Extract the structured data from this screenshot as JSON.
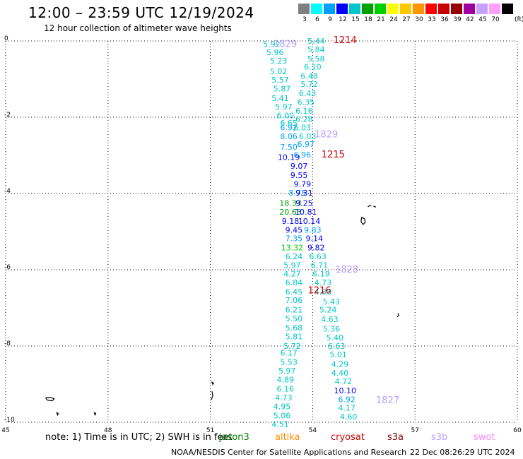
{
  "title": "12:00 – 23:59 UTC 12/19/2024",
  "subtitle": "12 hour collection of altimeter wave heights",
  "colorbar": {
    "unit": "(ft)",
    "entries": [
      {
        "label": "3",
        "color": "#7f7f7f"
      },
      {
        "label": "6",
        "color": "#00ffff"
      },
      {
        "label": "9",
        "color": "#00a0ff"
      },
      {
        "label": "12",
        "color": "#0000ff"
      },
      {
        "label": "15",
        "color": "#00c8c8"
      },
      {
        "label": "18",
        "color": "#00a000"
      },
      {
        "label": "21",
        "color": "#00d000"
      },
      {
        "label": "24",
        "color": "#ffff00"
      },
      {
        "label": "27",
        "color": "#ffc800"
      },
      {
        "label": "30",
        "color": "#ff9600"
      },
      {
        "label": "33",
        "color": "#ff0000"
      },
      {
        "label": "36",
        "color": "#c80000"
      },
      {
        "label": "39",
        "color": "#960000"
      },
      {
        "label": "42",
        "color": "#a000a0"
      },
      {
        "label": "45",
        "color": "#c8a0ff"
      },
      {
        "label": "70",
        "color": "#ffa0ff"
      },
      {
        "label": "",
        "color": "#000000"
      }
    ]
  },
  "axes": {
    "x_ticks": [
      "45",
      "48",
      "51",
      "54",
      "57",
      "60"
    ],
    "y_ticks": [
      "0",
      "-2",
      "-4",
      "-6",
      "-8",
      "-10"
    ],
    "x_range": [
      45,
      60
    ],
    "y_range": [
      -10,
      0
    ],
    "grid": true
  },
  "track": [
    {
      "v": "5.92",
      "lon": 52.8,
      "lat": -0.08,
      "c": "#00c8c8"
    },
    {
      "v": "5.44",
      "lon": 54.1,
      "lat": 0.0,
      "c": "#00c8c8"
    },
    {
      "v": "5.84",
      "lon": 54.1,
      "lat": -0.22,
      "c": "#00c8c8"
    },
    {
      "v": "5.96",
      "lon": 52.9,
      "lat": -0.3,
      "c": "#00c8c8"
    },
    {
      "v": "5.58",
      "lon": 54.1,
      "lat": -0.46,
      "c": "#00c8c8"
    },
    {
      "v": "5.23",
      "lon": 53.0,
      "lat": -0.52,
      "c": "#00c8c8"
    },
    {
      "v": "6.10",
      "lon": 54.0,
      "lat": -0.68,
      "c": "#00c8c8"
    },
    {
      "v": "5.02",
      "lon": 53.0,
      "lat": -0.8,
      "c": "#00c8c8"
    },
    {
      "v": "6.48",
      "lon": 53.9,
      "lat": -0.92,
      "c": "#00c8c8"
    },
    {
      "v": "5.57",
      "lon": 53.05,
      "lat": -1.02,
      "c": "#00c8c8"
    },
    {
      "v": "5.72",
      "lon": 53.9,
      "lat": -1.13,
      "c": "#00c8c8"
    },
    {
      "v": "5.87",
      "lon": 53.1,
      "lat": -1.25,
      "c": "#00c8c8"
    },
    {
      "v": "6.43",
      "lon": 53.85,
      "lat": -1.37,
      "c": "#00c8c8"
    },
    {
      "v": "5.41",
      "lon": 53.05,
      "lat": -1.5,
      "c": "#00c8c8"
    },
    {
      "v": "6.35",
      "lon": 53.8,
      "lat": -1.6,
      "c": "#00c8c8"
    },
    {
      "v": "5.97",
      "lon": 53.15,
      "lat": -1.72,
      "c": "#00c8c8"
    },
    {
      "v": "6.16",
      "lon": 53.75,
      "lat": -1.83,
      "c": "#00c8c8"
    },
    {
      "v": "6.00",
      "lon": 53.2,
      "lat": -1.95,
      "c": "#00c8c8"
    },
    {
      "v": "6.28",
      "lon": 53.75,
      "lat": -2.05,
      "c": "#00c8c8"
    },
    {
      "v": "6.65",
      "lon": 53.3,
      "lat": -2.15,
      "c": "#00c8c8"
    },
    {
      "v": "6.92",
      "lon": 53.3,
      "lat": -2.27,
      "c": "#00a0ff"
    },
    {
      "v": "6.03",
      "lon": 53.7,
      "lat": -2.27,
      "c": "#00c8c8"
    },
    {
      "v": "8.06",
      "lon": 53.3,
      "lat": -2.5,
      "c": "#00a0ff"
    },
    {
      "v": "6.03",
      "lon": 53.85,
      "lat": -2.5,
      "c": "#00c8c8"
    },
    {
      "v": "7.50",
      "lon": 53.3,
      "lat": -2.78,
      "c": "#00a0ff"
    },
    {
      "v": "6.97",
      "lon": 53.8,
      "lat": -2.7,
      "c": "#00a0ff"
    },
    {
      "v": "10.19",
      "lon": 53.3,
      "lat": -3.05,
      "c": "#0000ff"
    },
    {
      "v": "6.96",
      "lon": 53.7,
      "lat": -2.98,
      "c": "#00a0ff"
    },
    {
      "v": "9.07",
      "lon": 53.6,
      "lat": -3.28,
      "c": "#0000ff"
    },
    {
      "v": "9.55",
      "lon": 53.6,
      "lat": -3.52,
      "c": "#0000ff"
    },
    {
      "v": "9.79",
      "lon": 53.7,
      "lat": -3.75,
      "c": "#0000ff"
    },
    {
      "v": "8.75",
      "lon": 53.55,
      "lat": -3.98,
      "c": "#00a0ff"
    },
    {
      "v": "9.31",
      "lon": 53.75,
      "lat": -3.98,
      "c": "#0000ff"
    },
    {
      "v": "18.33",
      "lon": 53.35,
      "lat": -4.25,
      "c": "#00a000"
    },
    {
      "v": "9.25",
      "lon": 53.75,
      "lat": -4.25,
      "c": "#0000ff"
    },
    {
      "v": "20.63",
      "lon": 53.35,
      "lat": -4.48,
      "c": "#00a000"
    },
    {
      "v": "10.81",
      "lon": 53.8,
      "lat": -4.48,
      "c": "#0000ff"
    },
    {
      "v": "9.18",
      "lon": 53.35,
      "lat": -4.72,
      "c": "#0000ff"
    },
    {
      "v": "10.14",
      "lon": 53.9,
      "lat": -4.72,
      "c": "#0000ff"
    },
    {
      "v": "9.45",
      "lon": 53.45,
      "lat": -4.95,
      "c": "#0000ff"
    },
    {
      "v": "9.83",
      "lon": 54.0,
      "lat": -4.95,
      "c": "#00a0ff"
    },
    {
      "v": "7.35",
      "lon": 53.45,
      "lat": -5.18,
      "c": "#00a0ff"
    },
    {
      "v": "9.14",
      "lon": 54.05,
      "lat": -5.18,
      "c": "#0000ff"
    },
    {
      "v": "13.32",
      "lon": 53.4,
      "lat": -5.42,
      "c": "#00d000"
    },
    {
      "v": "9.82",
      "lon": 54.1,
      "lat": -5.42,
      "c": "#0000ff"
    },
    {
      "v": "6.24",
      "lon": 53.45,
      "lat": -5.65,
      "c": "#00c8c8"
    },
    {
      "v": "6.63",
      "lon": 54.15,
      "lat": -5.65,
      "c": "#00c8c8"
    },
    {
      "v": "5.97",
      "lon": 53.4,
      "lat": -5.88,
      "c": "#00c8c8"
    },
    {
      "v": "6.71",
      "lon": 54.2,
      "lat": -5.88,
      "c": "#00c8c8"
    },
    {
      "v": "4.27",
      "lon": 53.4,
      "lat": -6.1,
      "c": "#00c8c8"
    },
    {
      "v": "6.19",
      "lon": 54.25,
      "lat": -6.1,
      "c": "#00c8c8"
    },
    {
      "v": "6.84",
      "lon": 53.45,
      "lat": -6.33,
      "c": "#00c8c8"
    },
    {
      "v": "4.73",
      "lon": 54.3,
      "lat": -6.33,
      "c": "#00c8c8"
    },
    {
      "v": "6.45",
      "lon": 53.45,
      "lat": -6.57,
      "c": "#00c8c8"
    },
    {
      "v": "4.88",
      "lon": 54.3,
      "lat": -6.57,
      "c": "#00c8c8"
    },
    {
      "v": "7.06",
      "lon": 53.45,
      "lat": -6.8,
      "c": "#00c8c8"
    },
    {
      "v": "5.43",
      "lon": 54.55,
      "lat": -6.83,
      "c": "#00c8c8"
    },
    {
      "v": "6.21",
      "lon": 53.45,
      "lat": -7.05,
      "c": "#00c8c8"
    },
    {
      "v": "5.24",
      "lon": 54.45,
      "lat": -7.05,
      "c": "#00c8c8"
    },
    {
      "v": "5.50",
      "lon": 53.45,
      "lat": -7.28,
      "c": "#00c8c8"
    },
    {
      "v": "4.63",
      "lon": 54.5,
      "lat": -7.3,
      "c": "#00c8c8"
    },
    {
      "v": "5.68",
      "lon": 53.45,
      "lat": -7.52,
      "c": "#00c8c8"
    },
    {
      "v": "5.36",
      "lon": 54.55,
      "lat": -7.55,
      "c": "#00c8c8"
    },
    {
      "v": "5.81",
      "lon": 53.45,
      "lat": -7.75,
      "c": "#00c8c8"
    },
    {
      "v": "5.40",
      "lon": 54.65,
      "lat": -7.78,
      "c": "#00c8c8"
    },
    {
      "v": "5.72",
      "lon": 53.4,
      "lat": -8.0,
      "c": "#00c8c8"
    },
    {
      "v": "6.63",
      "lon": 54.7,
      "lat": -8.0,
      "c": "#00c8c8"
    },
    {
      "v": "6.17",
      "lon": 53.3,
      "lat": -8.18,
      "c": "#00c8c8"
    },
    {
      "v": "5.01",
      "lon": 54.75,
      "lat": -8.22,
      "c": "#00c8c8"
    },
    {
      "v": "5.53",
      "lon": 53.3,
      "lat": -8.42,
      "c": "#00c8c8"
    },
    {
      "v": "4.29",
      "lon": 54.8,
      "lat": -8.47,
      "c": "#00c8c8"
    },
    {
      "v": "5.97",
      "lon": 53.25,
      "lat": -8.65,
      "c": "#00c8c8"
    },
    {
      "v": "4.40",
      "lon": 54.8,
      "lat": -8.7,
      "c": "#00c8c8"
    },
    {
      "v": "4.89",
      "lon": 53.2,
      "lat": -8.88,
      "c": "#00c8c8"
    },
    {
      "v": "4.72",
      "lon": 54.9,
      "lat": -8.93,
      "c": "#00c8c8"
    },
    {
      "v": "6.16",
      "lon": 53.2,
      "lat": -9.12,
      "c": "#00c8c8"
    },
    {
      "v": "10.10",
      "lon": 54.95,
      "lat": -9.17,
      "c": "#0000ff"
    },
    {
      "v": "4.73",
      "lon": 53.15,
      "lat": -9.35,
      "c": "#00c8c8"
    },
    {
      "v": "6.92",
      "lon": 55.0,
      "lat": -9.4,
      "c": "#00a0ff"
    },
    {
      "v": "4.95",
      "lon": 53.1,
      "lat": -9.58,
      "c": "#00c8c8"
    },
    {
      "v": "4.17",
      "lon": 55.0,
      "lat": -9.62,
      "c": "#00c8c8"
    },
    {
      "v": "5.06",
      "lon": 53.1,
      "lat": -9.82,
      "c": "#00c8c8"
    },
    {
      "v": "4.60",
      "lon": 55.05,
      "lat": -9.85,
      "c": "#00c8c8"
    },
    {
      "v": "4.51",
      "lon": 53.05,
      "lat": -10.05,
      "c": "#00c8c8"
    }
  ],
  "time_labels": [
    {
      "text": "1214",
      "lon": 54.95,
      "lat": 0.02,
      "c": "#cc0000"
    },
    {
      "text": "1829",
      "lon": 53.2,
      "lat": -0.08,
      "c": "#b8a0ff"
    },
    {
      "text": "1829",
      "lon": 54.4,
      "lat": -2.45,
      "c": "#b8a0ff"
    },
    {
      "text": "1215",
      "lon": 54.6,
      "lat": -2.98,
      "c": "#cc0000"
    },
    {
      "text": "1828",
      "lon": 55.0,
      "lat": -6.0,
      "c": "#b8a0ff"
    },
    {
      "text": "1216",
      "lon": 54.2,
      "lat": -6.55,
      "c": "#cc0000"
    },
    {
      "text": "1827",
      "lon": 56.2,
      "lat": -9.43,
      "c": "#b8a0ff"
    }
  ],
  "islands": [
    {
      "lon": 55.7,
      "lat": -4.35,
      "shape": "seychelles-north"
    },
    {
      "lon": 55.5,
      "lat": -4.7,
      "shape": "mahe"
    },
    {
      "lon": 56.5,
      "lat": -7.2,
      "shape": "coetivy"
    },
    {
      "lon": 46.3,
      "lat": -9.4,
      "shape": "aldabra"
    },
    {
      "lon": 46.5,
      "lat": -9.75,
      "shape": "small-dot"
    },
    {
      "lon": 47.6,
      "lat": -9.75,
      "shape": "small-dot"
    },
    {
      "lon": 51.05,
      "lat": -9.3,
      "shape": "providence"
    },
    {
      "lon": 51.05,
      "lat": -8.95,
      "shape": "small-dot"
    }
  ],
  "note": {
    "text": "note:  1) Time is in UTC; 2) SWH is in feet",
    "satellites": [
      {
        "name": "jason3",
        "color": "#008000"
      },
      {
        "name": "altika",
        "color": "#ff8c00"
      },
      {
        "name": "cryosat",
        "color": "#cc0000"
      },
      {
        "name": "s3a",
        "color": "#800000"
      },
      {
        "name": "s3b",
        "color": "#b8a0ff"
      },
      {
        "name": "swot",
        "color": "#ff88ff"
      }
    ]
  },
  "footer": {
    "credit": "NOAA/NESDIS Center for Satellite Applications and Research",
    "timestamp": "22 Dec 08:26:29 UTC 2024"
  }
}
